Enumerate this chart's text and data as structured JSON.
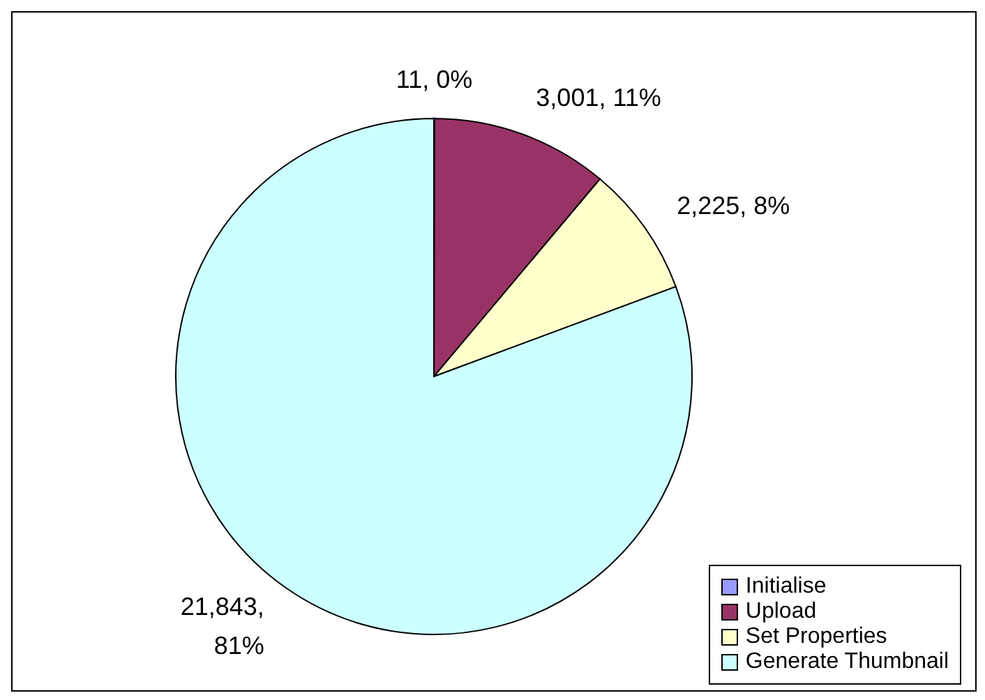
{
  "chart_data": {
    "type": "pie",
    "categories": [
      "Initialise",
      "Upload",
      "Set Properties",
      "Generate Thumbnail"
    ],
    "values": [
      11,
      3001,
      2225,
      21843
    ],
    "colors": [
      "#9999ff",
      "#993366",
      "#ffffcc",
      "#ccffff"
    ],
    "value_labels": [
      "11, 0%",
      "3,001, 11%",
      "2,225, 8%",
      "21,843, 81%"
    ],
    "legend": "bottom right"
  }
}
